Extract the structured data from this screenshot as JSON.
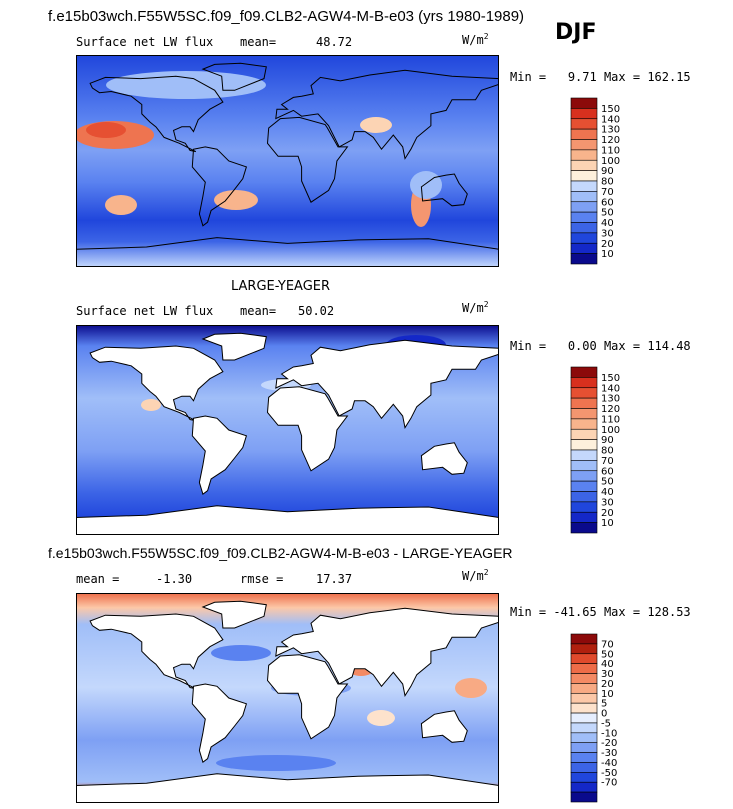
{
  "header": {
    "title": "f.e15b03wch.F55W5SC.f09_f09.CLB2-AGW4-M-B-e03 (yrs 1980-1989)",
    "season": "DJF"
  },
  "colors": {
    "land": "#ffffff",
    "coast": "#000000",
    "abs_scale": [
      "#0a0a8c",
      "#1428c8",
      "#2046dc",
      "#3c64e6",
      "#5a82f0",
      "#7ea0f4",
      "#a0bef8",
      "#c4d8fc",
      "#fdf0dc",
      "#fcd4b4",
      "#f8b48c",
      "#f49670",
      "#ee7450",
      "#e65032",
      "#d8301e",
      "#8c0a0a"
    ],
    "diff_scale": [
      "#0a0a8c",
      "#1428c8",
      "#2046dc",
      "#3c64e6",
      "#5a82f0",
      "#7ea0f4",
      "#a0bef8",
      "#c4d8fc",
      "#e6eefe",
      "#fde2cc",
      "#fcc8a8",
      "#f8aa84",
      "#f48a64",
      "#ee6c48",
      "#e04a2c",
      "#b0200e",
      "#8c0a0a"
    ]
  },
  "chart_data": [
    {
      "type": "heatmap",
      "variable": "Surface net LW flux",
      "mean_label": "mean=",
      "mean": "48.72",
      "units": "W/m",
      "units_exp": "2",
      "min_label": "Min =",
      "min": "9.71",
      "max_label": "Max =",
      "max": "162.15",
      "colorbar_levels": [
        "150",
        "140",
        "130",
        "120",
        "110",
        "100",
        "90",
        "80",
        "70",
        "60",
        "50",
        "40",
        "30",
        "20",
        "10"
      ]
    },
    {
      "type": "heatmap",
      "title": "LARGE-YEAGER",
      "variable": "Surface net LW flux",
      "mean_label": "mean=",
      "mean": "50.02",
      "units": "W/m",
      "units_exp": "2",
      "min_label": "Min =",
      "min": "0.00",
      "max_label": "Max =",
      "max": "114.48",
      "colorbar_levels": [
        "150",
        "140",
        "130",
        "120",
        "110",
        "100",
        "90",
        "80",
        "70",
        "60",
        "50",
        "40",
        "30",
        "20",
        "10"
      ]
    },
    {
      "type": "heatmap",
      "title": "f.e15b03wch.F55W5SC.f09_f09.CLB2-AGW4-M-B-e03 - LARGE-YEAGER",
      "mean_label": "mean =",
      "mean": "-1.30",
      "rmse_label": "rmse =",
      "rmse": "17.37",
      "units": "W/m",
      "units_exp": "2",
      "min_label": "Min =",
      "min": "-41.65",
      "max_label": "Max =",
      "max": "128.53",
      "colorbar_levels": [
        "70",
        "50",
        "40",
        "30",
        "20",
        "10",
        "5",
        "0",
        "-5",
        "-10",
        "-20",
        "-30",
        "-40",
        "-50",
        "-70"
      ]
    }
  ]
}
